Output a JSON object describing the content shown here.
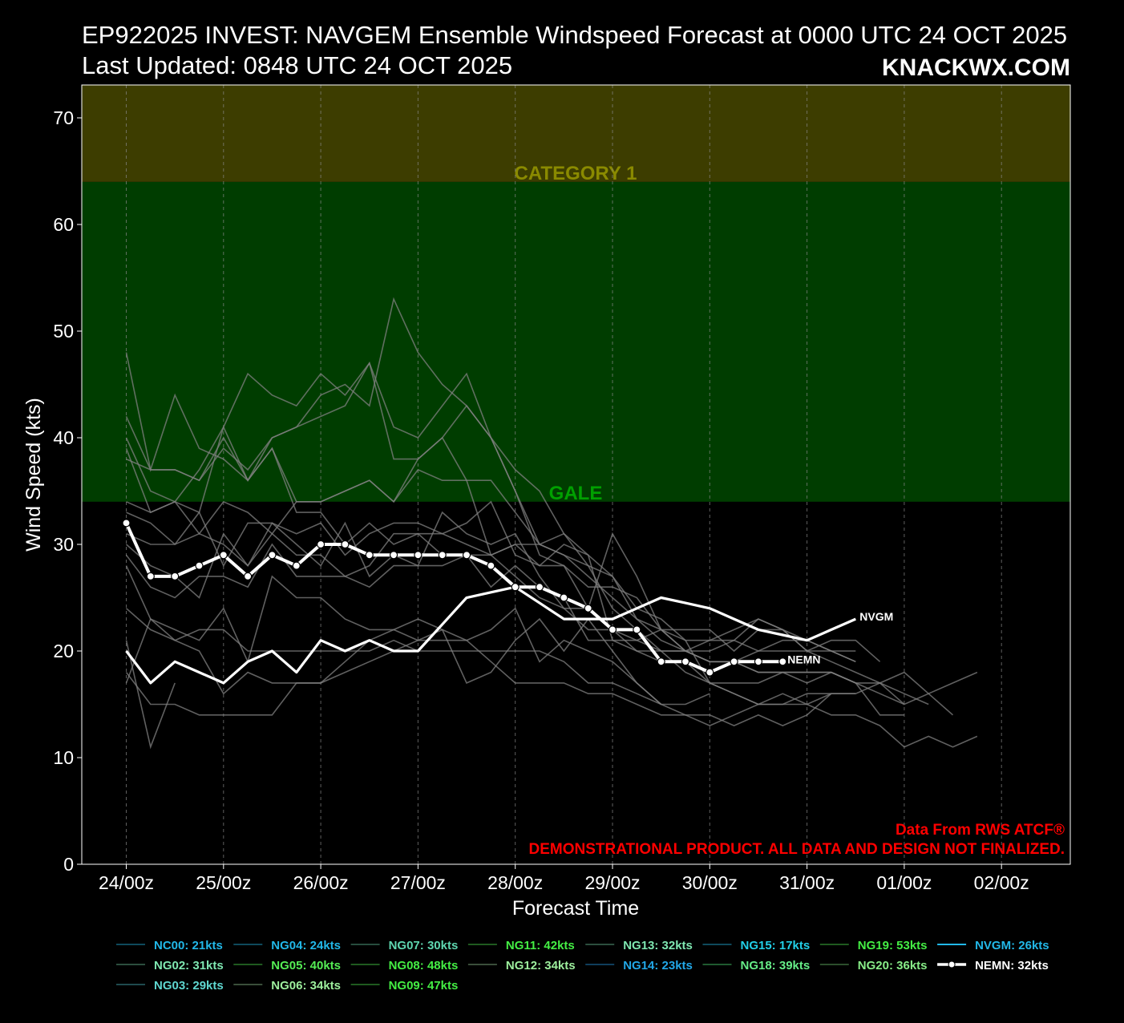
{
  "title_line1": "EP922025 INVEST: NAVGEM Ensemble Windspeed Forecast at 0000 UTC 24 OCT 2025",
  "title_line2": "Last Updated: 0848 UTC 24 OCT 2025",
  "brand": "KNACKWX.COM",
  "credit_line1": "Data From RWS ATCF®",
  "credit_line2": "DEMONSTRATIONAL PRODUCT. ALL DATA AND DESIGN NOT FINALIZED.",
  "colors": {
    "background": "#000000",
    "gale_band": "#003d00",
    "cat1_band": "#3d3d00",
    "gale_label": "#00a000",
    "cat1_label": "#8a8a00",
    "credit": "#ff0000",
    "member_line": "#808080",
    "nvgm_legend": "#22b8e8",
    "main_line": "#ffffff"
  },
  "chart_data": {
    "type": "line",
    "title": "",
    "xlabel": "Forecast Time",
    "ylabel": "Wind Speed (kts)",
    "xlim": [
      -0.45,
      9.7
    ],
    "ylim": [
      0,
      73
    ],
    "x_unit": "days after 24/00z",
    "x_ticks": [
      0,
      1,
      2,
      3,
      4,
      5,
      6,
      7,
      8,
      9
    ],
    "x_tick_labels": [
      "24/00z",
      "25/00z",
      "26/00z",
      "27/00z",
      "28/00z",
      "29/00z",
      "30/00z",
      "31/00z",
      "01/00z",
      "02/00z"
    ],
    "y_ticks": [
      0,
      10,
      20,
      30,
      40,
      50,
      60,
      70
    ],
    "grid": "vertical dashed",
    "bands": [
      {
        "name": "GALE",
        "from": 34,
        "to": 64
      },
      {
        "name": "CATEGORY 1",
        "from": 64,
        "to": 73
      }
    ],
    "nvgm": {
      "name": "NVGM",
      "x": [
        0,
        0.25,
        0.5,
        0.75,
        1,
        1.25,
        1.5,
        1.75,
        2,
        2.25,
        2.5,
        2.75,
        3,
        3.25,
        3.5,
        3.75,
        4,
        4.25,
        4.5,
        4.75,
        5,
        5.25,
        5.5,
        5.75,
        6,
        6.25,
        6.5,
        6.75,
        7,
        7.25,
        7.5
      ],
      "y": [
        20,
        17,
        19,
        18,
        17,
        19,
        20,
        18,
        21,
        20,
        21,
        20,
        20,
        22.5,
        25,
        25.5,
        26,
        24.5,
        23,
        23,
        23,
        24,
        25,
        24.5,
        24,
        23,
        22,
        21.5,
        21,
        22,
        23
      ]
    },
    "nemn": {
      "name": "NEMN",
      "x": [
        0,
        0.25,
        0.5,
        0.75,
        1,
        1.25,
        1.5,
        1.75,
        2,
        2.25,
        2.5,
        2.75,
        3,
        3.25,
        3.5,
        3.75,
        4,
        4.25,
        4.5,
        4.75,
        5,
        5.25,
        5.5,
        5.75,
        6,
        6.25,
        6.5,
        6.75
      ],
      "y": [
        32,
        27,
        27,
        28,
        29,
        27,
        29,
        28,
        30,
        30,
        29,
        29,
        29,
        29,
        29,
        28,
        26,
        26,
        25,
        24,
        22,
        22,
        19,
        19,
        18,
        19,
        19,
        19
      ]
    },
    "members": [
      {
        "start": 0,
        "values": [
          48,
          37,
          44,
          39,
          38,
          36,
          39,
          34,
          34,
          35,
          36,
          34,
          37,
          36,
          36,
          29,
          30,
          28,
          30,
          29,
          21,
          21,
          20,
          20,
          21,
          21,
          20,
          20,
          20,
          21,
          21,
          19
        ]
      },
      {
        "start": 0,
        "values": [
          42,
          37,
          37,
          36,
          40,
          36,
          39,
          33,
          33,
          30,
          32,
          30,
          31,
          29,
          29,
          29,
          30,
          30,
          31,
          29,
          27,
          23,
          22,
          22,
          22,
          20,
          22,
          22,
          20,
          20,
          19
        ]
      },
      {
        "start": 0,
        "values": [
          40,
          35,
          34,
          33,
          41,
          36,
          40,
          41,
          44,
          45,
          43,
          53,
          48,
          45,
          43,
          40,
          35,
          29,
          28,
          26,
          26,
          25,
          22,
          20,
          19,
          19,
          20,
          21,
          21,
          20,
          20
        ]
      },
      {
        "start": 0,
        "values": [
          39,
          33,
          34,
          37,
          41,
          46,
          44,
          43,
          46,
          44,
          47,
          38,
          38,
          40,
          36,
          36,
          33,
          30,
          29,
          27,
          25,
          23,
          21,
          20,
          19,
          19,
          18,
          18,
          18,
          18,
          17,
          14,
          14
        ]
      },
      {
        "start": 0,
        "values": [
          38,
          37,
          37,
          36,
          39,
          37,
          40,
          41,
          42,
          43,
          47,
          41,
          40,
          43,
          46,
          40,
          35,
          30,
          29,
          28,
          24,
          22,
          20,
          20,
          19,
          19,
          18,
          18,
          18,
          18,
          17,
          17,
          18,
          16,
          14
        ]
      },
      {
        "start": 0,
        "values": [
          34,
          33,
          34,
          31,
          34,
          33,
          31,
          34,
          34,
          35,
          36,
          34,
          38,
          40,
          43,
          40,
          37,
          35,
          31,
          28,
          27,
          24,
          23,
          21,
          21,
          22,
          23,
          22,
          20,
          19,
          18,
          17,
          16,
          15
        ]
      },
      {
        "start": 0,
        "values": [
          33,
          32,
          30,
          31,
          30,
          28,
          32,
          30,
          28,
          32,
          27,
          29,
          28,
          33,
          31,
          30,
          31,
          27,
          24,
          24,
          31,
          27,
          22,
          20,
          20,
          21,
          23,
          22,
          21,
          20,
          19
        ]
      },
      {
        "start": 0,
        "values": [
          31,
          30,
          30,
          33,
          28,
          32,
          32,
          31,
          32,
          29,
          31,
          32,
          32,
          31,
          32,
          34,
          29,
          28,
          28,
          24,
          22,
          21,
          22,
          21,
          17,
          16,
          15,
          16,
          15,
          14,
          14,
          13,
          11,
          12,
          11,
          12
        ]
      },
      {
        "start": 0,
        "values": [
          30,
          28,
          27,
          25,
          31,
          28,
          31,
          29,
          29,
          27,
          28,
          31,
          31,
          31,
          30,
          29,
          27,
          25,
          24,
          22,
          22,
          20,
          20,
          18,
          17,
          16,
          15,
          15,
          16,
          16
        ]
      },
      {
        "start": 0,
        "values": [
          29,
          26,
          25,
          27,
          27,
          26,
          30,
          27,
          27,
          27,
          26,
          28,
          28,
          28,
          29,
          26,
          28,
          26,
          25,
          21,
          21,
          20,
          19,
          19,
          17,
          17,
          17,
          18,
          17,
          18,
          17,
          16,
          15
        ]
      },
      {
        "start": 0,
        "values": [
          28,
          23,
          22,
          21,
          24,
          19,
          27,
          25,
          25,
          23,
          22,
          22,
          23,
          22,
          17,
          18,
          21,
          23,
          20,
          23,
          20,
          17,
          15,
          15,
          16
        ]
      },
      {
        "start": 0,
        "values": [
          24,
          22,
          21,
          22,
          22,
          20,
          20,
          20,
          20,
          20,
          20,
          21,
          20,
          20,
          20,
          20,
          20,
          20,
          19,
          17,
          17,
          16,
          15
        ]
      },
      {
        "start": 0,
        "values": [
          21,
          11,
          17
        ]
      },
      {
        "start": 0,
        "values": [
          18,
          15,
          15,
          14,
          14,
          14,
          14,
          17,
          17,
          19,
          21,
          22,
          21,
          22,
          21,
          22,
          24,
          19,
          21,
          20,
          19,
          17,
          15,
          14,
          13,
          14,
          15,
          15,
          15,
          16,
          16
        ]
      },
      {
        "start": 0,
        "values": [
          17,
          23,
          21,
          20,
          16,
          18,
          17,
          17,
          17,
          18,
          19,
          20,
          21,
          21,
          21,
          19,
          17,
          17,
          17,
          16,
          16,
          15,
          14,
          14,
          14,
          13,
          14,
          13,
          14,
          16,
          16,
          17,
          15,
          16,
          17,
          18
        ]
      }
    ]
  },
  "legend": [
    {
      "label": "NC00: 21kts",
      "color": "#22b8e8",
      "line": "#0f4a5c"
    },
    {
      "label": "NG04: 24kts",
      "color": "#22b8e8",
      "line": "#0f4a5c"
    },
    {
      "label": "NG07: 30kts",
      "color": "#5fd7b0",
      "line": "#274d3e"
    },
    {
      "label": "NG11: 42kts",
      "color": "#44ee44",
      "line": "#1f5a1f"
    },
    {
      "label": "NG13: 32kts",
      "color": "#7fe8b2",
      "line": "#2c4e3e"
    },
    {
      "label": "NG15: 17kts",
      "color": "#22d0e8",
      "line": "#0f4a5c"
    },
    {
      "label": "NG19: 53kts",
      "color": "#44ee44",
      "line": "#1f5a1f"
    },
    {
      "label": "NVGM: 26kts",
      "color": "#22b8e8",
      "line": "#22b8e8"
    },
    {
      "label": "NG02: 31kts",
      "color": "#7fe8b2",
      "line": "#2c4e3e"
    },
    {
      "label": "NG05: 40kts",
      "color": "#55ee55",
      "line": "#1f5a1f"
    },
    {
      "label": "NG08: 48kts",
      "color": "#44ee44",
      "line": "#1f5a1f"
    },
    {
      "label": "NG12: 34kts",
      "color": "#9ef09e",
      "line": "#3a4e3a"
    },
    {
      "label": "NG14: 23kts",
      "color": "#22a8e8",
      "line": "#0f3e5c"
    },
    {
      "label": "NG18: 39kts",
      "color": "#66ee88",
      "line": "#1f5a2f"
    },
    {
      "label": "NG20: 36kts",
      "color": "#88ee88",
      "line": "#2c4e2c"
    },
    {
      "label": "NEMN: 32kts",
      "color": "#ffffff",
      "line": "#ffffff",
      "marker": true
    },
    {
      "label": "NG03: 29kts",
      "color": "#5fd7d0",
      "line": "#1f4a4e"
    },
    {
      "label": "NG06: 34kts",
      "color": "#9ef09e",
      "line": "#3a4e3a"
    },
    {
      "label": "NG09: 47kts",
      "color": "#44ee44",
      "line": "#1f5a1f"
    }
  ]
}
